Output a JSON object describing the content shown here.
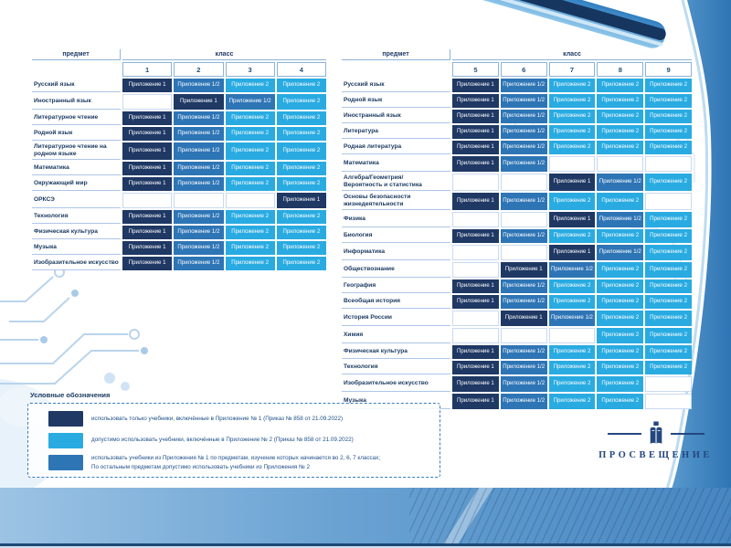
{
  "slide": {
    "cell_types": {
      "a1": {
        "label": "Приложение 1",
        "color": "#1f3864"
      },
      "a12": {
        "label": "Приложение 1/2",
        "color": "#2e75b6"
      },
      "a2": {
        "label": "Приложение 2",
        "color": "#29abe2"
      }
    },
    "tables": [
      {
        "subject_header": "предмет",
        "class_header": "класс",
        "classes": [
          "1",
          "2",
          "3",
          "4"
        ],
        "rows": [
          {
            "subject": "Русский язык",
            "cells": [
              "a1",
              "a12",
              "a2",
              "a2"
            ]
          },
          {
            "subject": "Иностранный язык",
            "cells": [
              "",
              "a1",
              "a12",
              "a2"
            ]
          },
          {
            "subject": "Литературное чтение",
            "cells": [
              "a1",
              "a12",
              "a2",
              "a2"
            ]
          },
          {
            "subject": "Родной язык",
            "cells": [
              "a1",
              "a12",
              "a2",
              "a2"
            ]
          },
          {
            "subject": "Литературное чтение на родном языке",
            "cells": [
              "a1",
              "a12",
              "a2",
              "a2"
            ]
          },
          {
            "subject": "Математика",
            "cells": [
              "a1",
              "a12",
              "a2",
              "a2"
            ]
          },
          {
            "subject": "Окружающий мир",
            "cells": [
              "a1",
              "a12",
              "a2",
              "a2"
            ]
          },
          {
            "subject": "ОРКСЭ",
            "cells": [
              "",
              "",
              "",
              "a1"
            ]
          },
          {
            "subject": "Технология",
            "cells": [
              "a1",
              "a12",
              "a2",
              "a2"
            ]
          },
          {
            "subject": "Физическая культура",
            "cells": [
              "a1",
              "a12",
              "a2",
              "a2"
            ]
          },
          {
            "subject": "Музыка",
            "cells": [
              "a1",
              "a12",
              "a2",
              "a2"
            ]
          },
          {
            "subject": "Изобразительное искусство",
            "cells": [
              "a1",
              "a12",
              "a2",
              "a2"
            ]
          }
        ]
      },
      {
        "subject_header": "предмет",
        "class_header": "класс",
        "classes": [
          "5",
          "6",
          "7",
          "8",
          "9"
        ],
        "rows": [
          {
            "subject": "Русский язык",
            "cells": [
              "a1",
              "a12",
              "a2",
              "a2",
              "a2"
            ]
          },
          {
            "subject": "Родной язык",
            "cells": [
              "a1",
              "a12",
              "a2",
              "a2",
              "a2"
            ]
          },
          {
            "subject": "Иностранный язык",
            "cells": [
              "a1",
              "a12",
              "a2",
              "a2",
              "a2"
            ]
          },
          {
            "subject": "Литература",
            "cells": [
              "a1",
              "a12",
              "a2",
              "a2",
              "a2"
            ]
          },
          {
            "subject": "Родная литература",
            "cells": [
              "a1",
              "a12",
              "a2",
              "a2",
              "a2"
            ]
          },
          {
            "subject": "Математика",
            "cells": [
              "a1",
              "a12",
              "",
              "",
              ""
            ]
          },
          {
            "subject": "Алгебра/Геометрия/\nВероятность и статистика",
            "cells": [
              "",
              "",
              "a1",
              "a12",
              "a2"
            ]
          },
          {
            "subject": "Основы безопасности жизнедеятельности",
            "cells": [
              "a1",
              "a12",
              "a2",
              "a2",
              ""
            ]
          },
          {
            "subject": "Физика",
            "cells": [
              "",
              "",
              "a1",
              "a12",
              "a2"
            ]
          },
          {
            "subject": "Биология",
            "cells": [
              "a1",
              "a12",
              "a2",
              "a2",
              "a2"
            ]
          },
          {
            "subject": "Информатика",
            "cells": [
              "",
              "",
              "a1",
              "a12",
              "a2"
            ]
          },
          {
            "subject": "Обществознание",
            "cells": [
              "",
              "a1",
              "a12",
              "a2",
              "a2"
            ]
          },
          {
            "subject": "География",
            "cells": [
              "a1",
              "a12",
              "a2",
              "a2",
              "a2"
            ]
          },
          {
            "subject": "Всеобщая история",
            "cells": [
              "a1",
              "a12",
              "a2",
              "a2",
              "a2"
            ]
          },
          {
            "subject": "История России",
            "cells": [
              "",
              "a1",
              "a12",
              "a2",
              "a2"
            ]
          },
          {
            "subject": "Химия",
            "cells": [
              "",
              "",
              "",
              "a2",
              "a2"
            ]
          },
          {
            "subject": "Физическая культура",
            "cells": [
              "a1",
              "a12",
              "a2",
              "a2",
              "a2"
            ]
          },
          {
            "subject": "Технология",
            "cells": [
              "a1",
              "a12",
              "a2",
              "a2",
              "a2"
            ]
          },
          {
            "subject": "Изобразительное искусство",
            "cells": [
              "a1",
              "a12",
              "a2",
              "a2",
              ""
            ]
          },
          {
            "subject": "Музыка",
            "cells": [
              "a1",
              "a12",
              "a2",
              "a2",
              ""
            ]
          }
        ]
      }
    ],
    "legend": {
      "title": "Условные обозначения",
      "items": [
        {
          "type": "a1",
          "lines": [
            "использовать только учебники, включённые в Приложение № 1 (Приказ № 858 от 21.09.2022)"
          ]
        },
        {
          "type": "a2",
          "lines": [
            "допустимо использовать учебники, включённые в Приложение № 2 (Приказ № 858 от 21.09.2022)"
          ]
        },
        {
          "type": "a12",
          "lines": [
            "использовать учебники из Приложения № 1 по предметам, изучение которых начинается во 2, 6, 7 классах;",
            "По остальным предметам допустимо использовать учебники из Приложения № 2"
          ]
        }
      ]
    },
    "logo": {
      "text": "ПРОСВЕЩЕНИЕ"
    }
  }
}
